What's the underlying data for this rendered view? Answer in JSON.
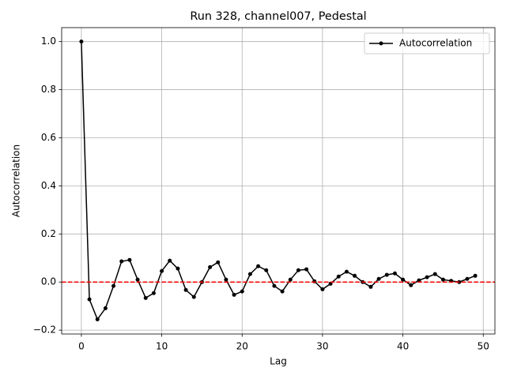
{
  "chart_data": {
    "type": "line",
    "title": "Run 328, channel007, Pedestal",
    "x_label": "Lag",
    "y_label": "Autocorrelation",
    "x": [
      0,
      1,
      2,
      3,
      4,
      5,
      6,
      7,
      8,
      9,
      10,
      11,
      12,
      13,
      14,
      15,
      16,
      17,
      18,
      19,
      20,
      21,
      22,
      23,
      24,
      25,
      26,
      27,
      28,
      29,
      30,
      31,
      32,
      33,
      34,
      35,
      36,
      37,
      38,
      39,
      40,
      41,
      42,
      43,
      44,
      45,
      46,
      47,
      48,
      49
    ],
    "series": [
      {
        "name": "Autocorrelation",
        "color": "#000000",
        "values": [
          1.0,
          -0.072,
          -0.155,
          -0.109,
          -0.016,
          0.086,
          0.092,
          0.01,
          -0.066,
          -0.046,
          0.046,
          0.089,
          0.056,
          -0.033,
          -0.062,
          0.0,
          0.062,
          0.082,
          0.01,
          -0.053,
          -0.039,
          0.033,
          0.066,
          0.049,
          -0.016,
          -0.039,
          0.01,
          0.049,
          0.053,
          0.003,
          -0.03,
          -0.007,
          0.023,
          0.043,
          0.026,
          0.0,
          -0.02,
          0.013,
          0.03,
          0.036,
          0.01,
          -0.013,
          0.007,
          0.02,
          0.033,
          0.01,
          0.005,
          0.0,
          0.013,
          0.026
        ]
      }
    ],
    "hline": {
      "value": 0,
      "color": "#ff0000"
    },
    "xlim": [
      -2.45,
      51.45
    ],
    "ylim": [
      -0.216,
      1.058
    ],
    "xticks": [
      0,
      10,
      20,
      30,
      40,
      50
    ],
    "yticks": [
      {
        "value": -0.2,
        "label": "−0.2"
      },
      {
        "value": 0,
        "label": "0.0"
      },
      {
        "value": 0.2,
        "label": "0.2"
      },
      {
        "value": 0.4,
        "label": "0.4"
      },
      {
        "value": 0.6,
        "label": "0.6"
      },
      {
        "value": 0.8,
        "label": "0.8"
      },
      {
        "value": 1.0,
        "label": "1.0"
      }
    ],
    "grid": true,
    "legend": "upper right"
  }
}
